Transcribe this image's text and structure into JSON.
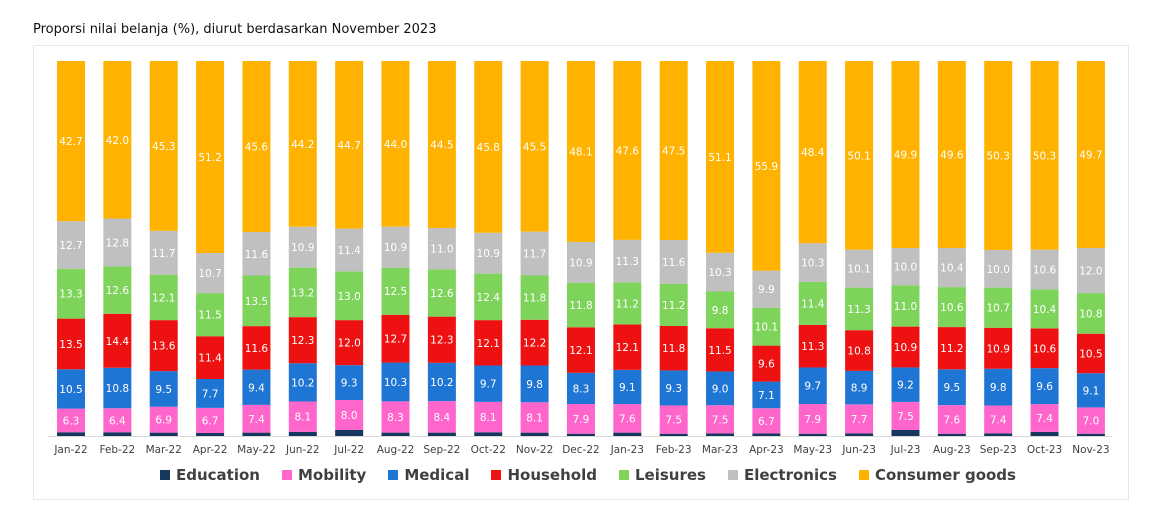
{
  "chart_data": {
    "type": "bar",
    "stacked": true,
    "title": "Proporsi nilai belanja (%), diurut berdasarkan November 2023",
    "categories": [
      "Jan-22",
      "Feb-22",
      "Mar-22",
      "Apr-22",
      "May-22",
      "Jun-22",
      "Jul-22",
      "Aug-22",
      "Sep-22",
      "Oct-22",
      "Nov-22",
      "Dec-22",
      "Jan-23",
      "Feb-23",
      "Mar-23",
      "Apr-23",
      "May-23",
      "Jun-23",
      "Jul-23",
      "Aug-23",
      "Sep-23",
      "Oct-23",
      "Nov-23"
    ],
    "ylim": [
      0,
      100
    ],
    "legend_position": "bottom",
    "series": [
      {
        "name": "Education",
        "color": "#17375e",
        "values": [
          1.0,
          1.0,
          0.9,
          0.8,
          0.9,
          1.1,
          1.6,
          0.9,
          0.9,
          1.0,
          0.9,
          0.6,
          0.9,
          0.6,
          0.7,
          0.7,
          0.6,
          0.7,
          1.6,
          0.6,
          0.7,
          1.1,
          0.6
        ],
        "labels": [
          "",
          "",
          "",
          "",
          "",
          "",
          "",
          "",
          "",
          "",
          "",
          "",
          "",
          "",
          "",
          "",
          "",
          "",
          "",
          "",
          "",
          "",
          ""
        ]
      },
      {
        "name": "Mobility",
        "color": "#ff66cc",
        "values": [
          6.3,
          6.4,
          6.9,
          6.7,
          7.4,
          8.1,
          8.0,
          8.3,
          8.4,
          8.1,
          8.1,
          7.9,
          7.6,
          7.5,
          7.5,
          6.7,
          7.9,
          7.7,
          7.5,
          7.6,
          7.4,
          7.4,
          7.0
        ],
        "labels": [
          "6.3",
          "6.4",
          "6.9",
          "6.7",
          "7.4",
          "8.1",
          "8.0",
          "8.3",
          "8.4",
          "8.1",
          "8.1",
          "7.9",
          "7.6",
          "7.5",
          "7.5",
          "6.7",
          "7.9",
          "7.7",
          "7.5",
          "7.6",
          "7.4",
          "7.4",
          "7.0"
        ]
      },
      {
        "name": "Medical",
        "color": "#1f75d3",
        "values": [
          10.5,
          10.8,
          9.5,
          7.7,
          9.4,
          10.2,
          9.3,
          10.3,
          10.2,
          9.7,
          9.8,
          8.3,
          9.1,
          9.3,
          9.0,
          7.1,
          9.7,
          8.9,
          9.2,
          9.5,
          9.8,
          9.6,
          9.1
        ],
        "labels": [
          "10.5",
          "10.8",
          "9.5",
          "7.7",
          "9.4",
          "10.2",
          "9.3",
          "10.3",
          "10.2",
          "9.7",
          "9.8",
          "8.3",
          "9.1",
          "9.3",
          "9.0",
          "7.1",
          "9.7",
          "8.9",
          "9.2",
          "9.5",
          "9.8",
          "9.6",
          "9.1"
        ]
      },
      {
        "name": "Household",
        "color": "#ee1111",
        "values": [
          13.5,
          14.4,
          13.6,
          11.4,
          11.6,
          12.3,
          12.0,
          12.7,
          12.3,
          12.1,
          12.2,
          12.1,
          12.1,
          11.8,
          11.5,
          9.6,
          11.3,
          10.8,
          10.9,
          11.2,
          10.9,
          10.6,
          10.5
        ],
        "labels": [
          "13.5",
          "14.4",
          "13.6",
          "11.4",
          "11.6",
          "12.3",
          "12.0",
          "12.7",
          "12.3",
          "12.1",
          "12.2",
          "12.1",
          "12.1",
          "11.8",
          "11.5",
          "9.6",
          "11.3",
          "10.8",
          "10.9",
          "11.2",
          "10.9",
          "10.6",
          "10.5"
        ]
      },
      {
        "name": "Leisures",
        "color": "#7ed35a",
        "values": [
          13.3,
          12.6,
          12.1,
          11.5,
          13.5,
          13.2,
          13.0,
          12.5,
          12.6,
          12.4,
          11.8,
          11.8,
          11.2,
          11.2,
          9.8,
          10.1,
          11.4,
          11.3,
          11.0,
          10.6,
          10.7,
          10.4,
          10.8
        ],
        "labels": [
          "13.3",
          "12.6",
          "12.1",
          "11.5",
          "13.5",
          "13.2",
          "13.0",
          "12.5",
          "12.6",
          "12.4",
          "11.8",
          "11.8",
          "11.2",
          "11.2",
          "9.8",
          "10.1",
          "11.4",
          "11.3",
          "11.0",
          "10.6",
          "10.7",
          "10.4",
          "10.8"
        ]
      },
      {
        "name": "Electronics",
        "color": "#c0c0c0",
        "values": [
          12.7,
          12.8,
          11.7,
          10.7,
          11.6,
          10.9,
          11.4,
          10.9,
          11.0,
          10.9,
          11.7,
          10.9,
          11.3,
          11.6,
          10.3,
          9.9,
          10.3,
          10.1,
          10.0,
          10.4,
          10.0,
          10.6,
          12.0
        ],
        "labels": [
          "12.7",
          "12.8",
          "11.7",
          "10.7",
          "11.6",
          "10.9",
          "11.4",
          "10.9",
          "11.0",
          "10.9",
          "11.7",
          "10.9",
          "11.3",
          "11.6",
          "10.3",
          "9.9",
          "10.3",
          "10.1",
          "10.0",
          "10.4",
          "10.0",
          "10.6",
          "12.0"
        ]
      },
      {
        "name": "Consumer goods",
        "color": "#ffb300",
        "values": [
          42.7,
          42.0,
          45.3,
          51.2,
          45.6,
          44.2,
          44.7,
          44.0,
          44.5,
          45.8,
          45.5,
          48.1,
          47.6,
          47.5,
          51.1,
          55.9,
          48.4,
          50.1,
          49.9,
          49.6,
          50.3,
          50.3,
          49.7
        ],
        "labels": [
          "42.7",
          "42.0",
          "45.3",
          "51.2",
          "45.6",
          "44.2",
          "44.7",
          "44.0",
          "44.5",
          "45.8",
          "45.5",
          "48.1",
          "47.6",
          "47.5",
          "51.1",
          "55.9",
          "48.4",
          "50.1",
          "49.9",
          "49.6",
          "50.3",
          "50.3",
          "49.7"
        ]
      }
    ]
  }
}
